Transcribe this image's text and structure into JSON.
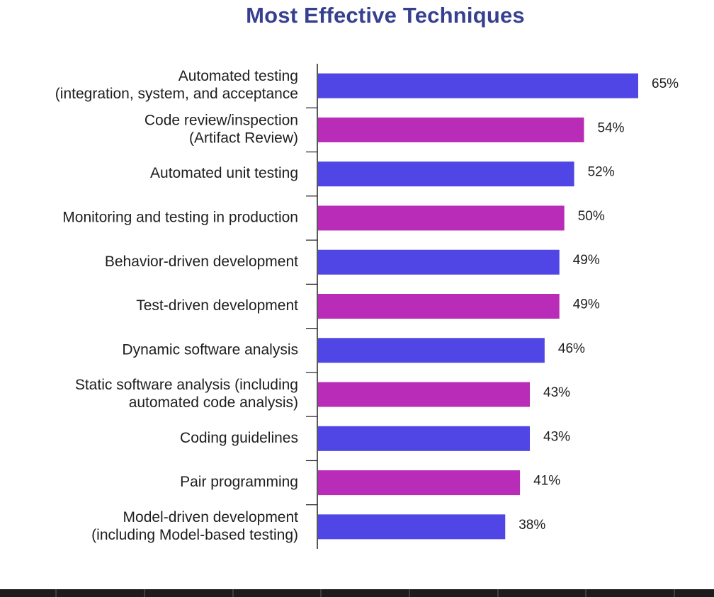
{
  "chart_data": {
    "type": "bar",
    "orientation": "horizontal",
    "title": "Most Effective Techniques",
    "xlabel": "",
    "ylabel": "",
    "xlim": [
      0,
      66
    ],
    "grid": false,
    "legend": "none",
    "value_suffix": "%",
    "colors": [
      "#4f46e5",
      "#b82cb8"
    ],
    "categories": [
      [
        "Automated testing",
        "(integration, system, and acceptance"
      ],
      [
        "Code review/inspection",
        "(Artifact Review)"
      ],
      [
        "Automated unit testing"
      ],
      [
        "Monitoring and testing in production"
      ],
      [
        "Behavior-driven development"
      ],
      [
        "Test-driven development"
      ],
      [
        "Dynamic software analysis"
      ],
      [
        "Static software analysis (including",
        "automated code analysis)"
      ],
      [
        "Coding guidelines"
      ],
      [
        "Pair programming"
      ],
      [
        "Model-driven development",
        "(including Model-based testing)"
      ]
    ],
    "values": [
      65,
      54,
      52,
      50,
      49,
      49,
      46,
      43,
      43,
      41,
      38
    ]
  }
}
